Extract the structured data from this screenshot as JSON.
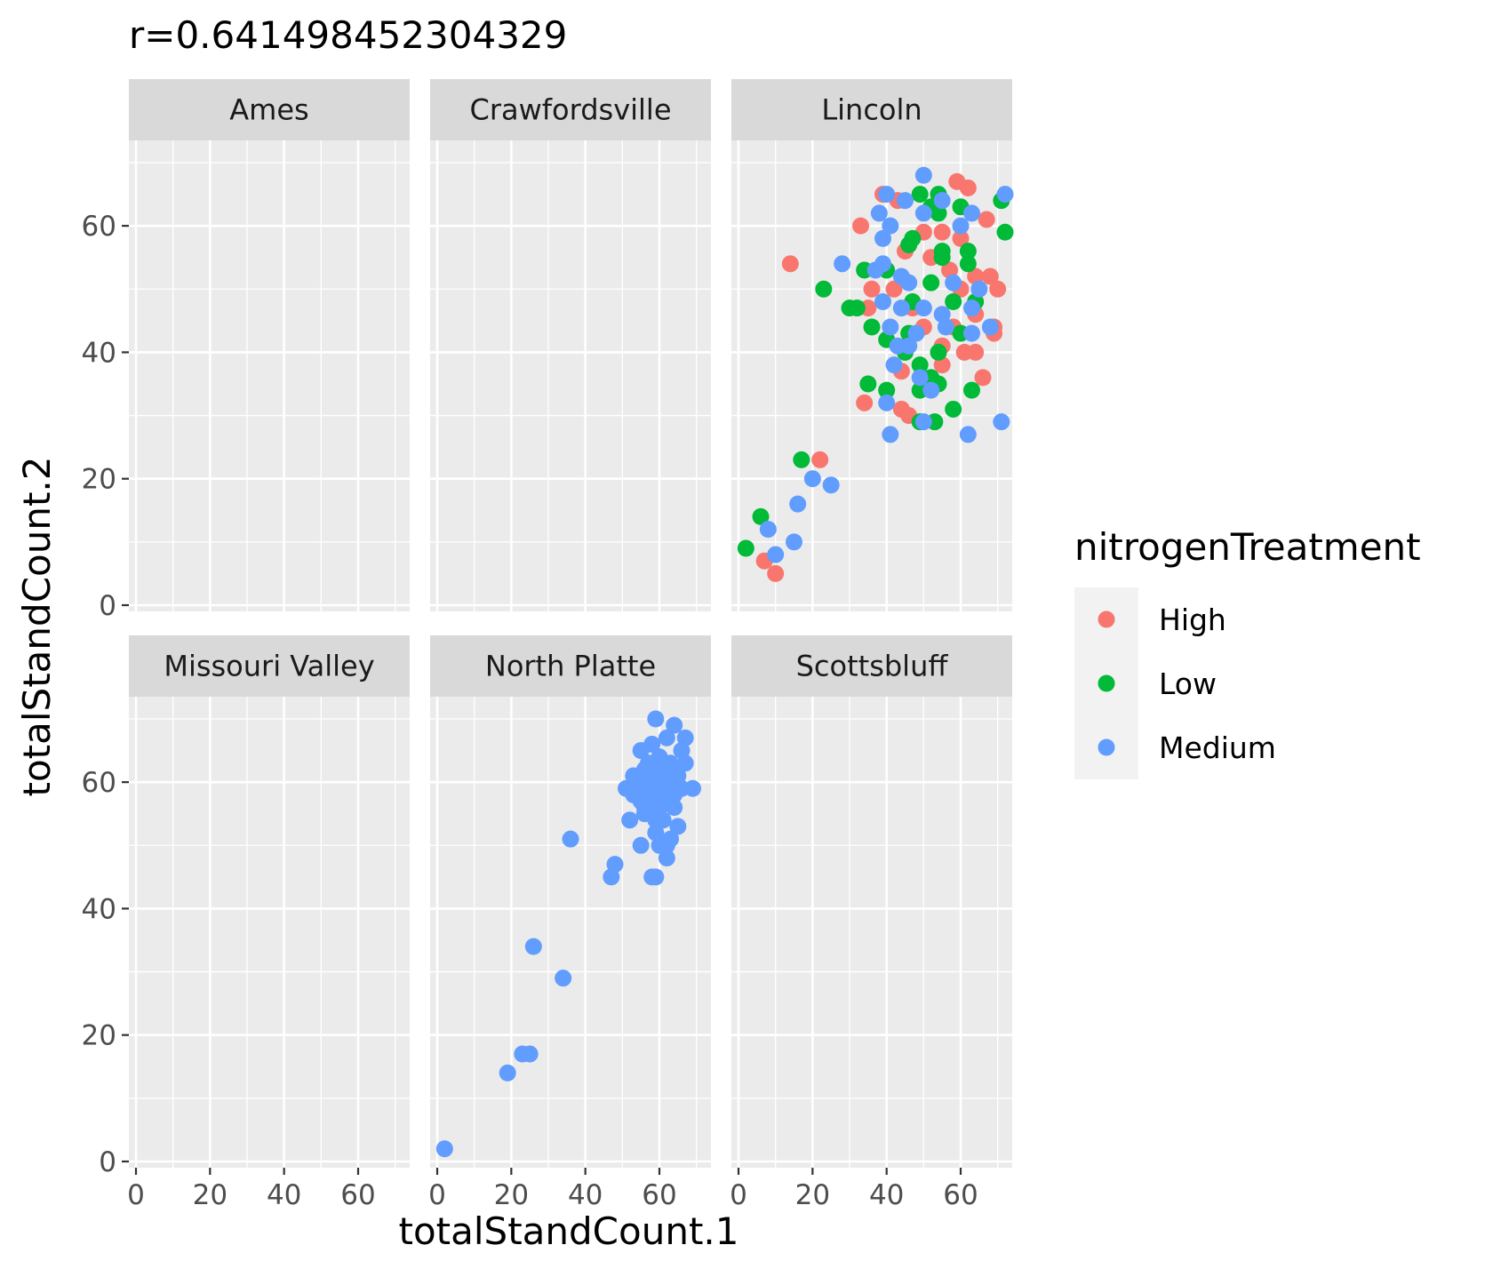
{
  "chart_data": {
    "type": "scatter",
    "title": "r=0.641498452304329",
    "xlabel": "totalStandCount.1",
    "ylabel": "totalStandCount.2",
    "xlim": [
      0,
      72
    ],
    "ylim": [
      0,
      70
    ],
    "x_ticks": [
      0,
      20,
      40,
      60
    ],
    "y_ticks": [
      0,
      20,
      40,
      60
    ],
    "x_tick_labels": [
      "0",
      "20",
      "40",
      "60"
    ],
    "y_tick_labels": [
      "0",
      "20",
      "40",
      "60"
    ],
    "grid": true,
    "facet_by": "location",
    "panels": [
      "Ames",
      "Crawfordsville",
      "Lincoln",
      "Missouri Valley",
      "North Platte",
      "Scottsbluff"
    ],
    "legend": {
      "title": "nitrogenTreatment",
      "position": "right",
      "entries": [
        {
          "label": "High",
          "color": "#F8766D"
        },
        {
          "label": "Low",
          "color": "#00BA38"
        },
        {
          "label": "Medium",
          "color": "#619CFF"
        }
      ]
    },
    "series": [
      {
        "name": "High",
        "color": "#F8766D",
        "points": [
          {
            "panel": "Lincoln",
            "x": 14,
            "y": 54
          },
          {
            "panel": "Lincoln",
            "x": 22,
            "y": 23
          },
          {
            "panel": "Lincoln",
            "x": 7,
            "y": 7
          },
          {
            "panel": "Lincoln",
            "x": 10,
            "y": 5
          },
          {
            "panel": "Lincoln",
            "x": 33,
            "y": 60
          },
          {
            "panel": "Lincoln",
            "x": 39,
            "y": 65
          },
          {
            "panel": "Lincoln",
            "x": 43,
            "y": 64
          },
          {
            "panel": "Lincoln",
            "x": 59,
            "y": 67
          },
          {
            "panel": "Lincoln",
            "x": 62,
            "y": 66
          },
          {
            "panel": "Lincoln",
            "x": 67,
            "y": 61
          },
          {
            "panel": "Lincoln",
            "x": 50,
            "y": 59
          },
          {
            "panel": "Lincoln",
            "x": 55,
            "y": 59
          },
          {
            "panel": "Lincoln",
            "x": 60,
            "y": 58
          },
          {
            "panel": "Lincoln",
            "x": 45,
            "y": 56
          },
          {
            "panel": "Lincoln",
            "x": 52,
            "y": 55
          },
          {
            "panel": "Lincoln",
            "x": 57,
            "y": 53
          },
          {
            "panel": "Lincoln",
            "x": 64,
            "y": 52
          },
          {
            "panel": "Lincoln",
            "x": 68,
            "y": 52
          },
          {
            "panel": "Lincoln",
            "x": 36,
            "y": 50
          },
          {
            "panel": "Lincoln",
            "x": 42,
            "y": 50
          },
          {
            "panel": "Lincoln",
            "x": 60,
            "y": 50
          },
          {
            "panel": "Lincoln",
            "x": 70,
            "y": 50
          },
          {
            "panel": "Lincoln",
            "x": 35,
            "y": 47
          },
          {
            "panel": "Lincoln",
            "x": 47,
            "y": 47
          },
          {
            "panel": "Lincoln",
            "x": 64,
            "y": 46
          },
          {
            "panel": "Lincoln",
            "x": 50,
            "y": 44
          },
          {
            "panel": "Lincoln",
            "x": 58,
            "y": 44
          },
          {
            "panel": "Lincoln",
            "x": 69,
            "y": 44
          },
          {
            "panel": "Lincoln",
            "x": 69,
            "y": 43
          },
          {
            "panel": "Lincoln",
            "x": 55,
            "y": 41
          },
          {
            "panel": "Lincoln",
            "x": 61,
            "y": 40
          },
          {
            "panel": "Lincoln",
            "x": 64,
            "y": 40
          },
          {
            "panel": "Lincoln",
            "x": 55,
            "y": 38
          },
          {
            "panel": "Lincoln",
            "x": 44,
            "y": 37
          },
          {
            "panel": "Lincoln",
            "x": 66,
            "y": 36
          },
          {
            "panel": "Lincoln",
            "x": 34,
            "y": 32
          },
          {
            "panel": "Lincoln",
            "x": 44,
            "y": 31
          },
          {
            "panel": "Lincoln",
            "x": 46,
            "y": 30
          }
        ]
      },
      {
        "name": "Low",
        "color": "#00BA38",
        "points": [
          {
            "panel": "Lincoln",
            "x": 2,
            "y": 9
          },
          {
            "panel": "Lincoln",
            "x": 6,
            "y": 14
          },
          {
            "panel": "Lincoln",
            "x": 17,
            "y": 23
          },
          {
            "panel": "Lincoln",
            "x": 23,
            "y": 50
          },
          {
            "panel": "Lincoln",
            "x": 30,
            "y": 47
          },
          {
            "panel": "Lincoln",
            "x": 32,
            "y": 47
          },
          {
            "panel": "Lincoln",
            "x": 34,
            "y": 53
          },
          {
            "panel": "Lincoln",
            "x": 36,
            "y": 44
          },
          {
            "panel": "Lincoln",
            "x": 35,
            "y": 35
          },
          {
            "panel": "Lincoln",
            "x": 40,
            "y": 34
          },
          {
            "panel": "Lincoln",
            "x": 40,
            "y": 42
          },
          {
            "panel": "Lincoln",
            "x": 40,
            "y": 53
          },
          {
            "panel": "Lincoln",
            "x": 46,
            "y": 57
          },
          {
            "panel": "Lincoln",
            "x": 47,
            "y": 58
          },
          {
            "panel": "Lincoln",
            "x": 49,
            "y": 65
          },
          {
            "panel": "Lincoln",
            "x": 52,
            "y": 63
          },
          {
            "panel": "Lincoln",
            "x": 54,
            "y": 65
          },
          {
            "panel": "Lincoln",
            "x": 60,
            "y": 63
          },
          {
            "panel": "Lincoln",
            "x": 54,
            "y": 62
          },
          {
            "panel": "Lincoln",
            "x": 71,
            "y": 64
          },
          {
            "panel": "Lincoln",
            "x": 72,
            "y": 59
          },
          {
            "panel": "Lincoln",
            "x": 55,
            "y": 56
          },
          {
            "panel": "Lincoln",
            "x": 62,
            "y": 56
          },
          {
            "panel": "Lincoln",
            "x": 55,
            "y": 55
          },
          {
            "panel": "Lincoln",
            "x": 62,
            "y": 54
          },
          {
            "panel": "Lincoln",
            "x": 52,
            "y": 51
          },
          {
            "panel": "Lincoln",
            "x": 47,
            "y": 48
          },
          {
            "panel": "Lincoln",
            "x": 58,
            "y": 48
          },
          {
            "panel": "Lincoln",
            "x": 64,
            "y": 48
          },
          {
            "panel": "Lincoln",
            "x": 46,
            "y": 43
          },
          {
            "panel": "Lincoln",
            "x": 60,
            "y": 43
          },
          {
            "panel": "Lincoln",
            "x": 45,
            "y": 40
          },
          {
            "panel": "Lincoln",
            "x": 54,
            "y": 40
          },
          {
            "panel": "Lincoln",
            "x": 49,
            "y": 38
          },
          {
            "panel": "Lincoln",
            "x": 52,
            "y": 36
          },
          {
            "panel": "Lincoln",
            "x": 54,
            "y": 35
          },
          {
            "panel": "Lincoln",
            "x": 49,
            "y": 34
          },
          {
            "panel": "Lincoln",
            "x": 63,
            "y": 34
          },
          {
            "panel": "Lincoln",
            "x": 58,
            "y": 31
          },
          {
            "panel": "Lincoln",
            "x": 49,
            "y": 29
          },
          {
            "panel": "Lincoln",
            "x": 53,
            "y": 29
          }
        ]
      },
      {
        "name": "Medium",
        "color": "#619CFF",
        "points": [
          {
            "panel": "Lincoln",
            "x": 8,
            "y": 12
          },
          {
            "panel": "Lincoln",
            "x": 10,
            "y": 8
          },
          {
            "panel": "Lincoln",
            "x": 15,
            "y": 10
          },
          {
            "panel": "Lincoln",
            "x": 16,
            "y": 16
          },
          {
            "panel": "Lincoln",
            "x": 20,
            "y": 20
          },
          {
            "panel": "Lincoln",
            "x": 25,
            "y": 19
          },
          {
            "panel": "Lincoln",
            "x": 28,
            "y": 54
          },
          {
            "panel": "Lincoln",
            "x": 38,
            "y": 62
          },
          {
            "panel": "Lincoln",
            "x": 39,
            "y": 58
          },
          {
            "panel": "Lincoln",
            "x": 40,
            "y": 65
          },
          {
            "panel": "Lincoln",
            "x": 41,
            "y": 60
          },
          {
            "panel": "Lincoln",
            "x": 45,
            "y": 64
          },
          {
            "panel": "Lincoln",
            "x": 50,
            "y": 68
          },
          {
            "panel": "Lincoln",
            "x": 50,
            "y": 62
          },
          {
            "panel": "Lincoln",
            "x": 55,
            "y": 64
          },
          {
            "panel": "Lincoln",
            "x": 60,
            "y": 60
          },
          {
            "panel": "Lincoln",
            "x": 63,
            "y": 62
          },
          {
            "panel": "Lincoln",
            "x": 72,
            "y": 65
          },
          {
            "panel": "Lincoln",
            "x": 65,
            "y": 50
          },
          {
            "panel": "Lincoln",
            "x": 63,
            "y": 47
          },
          {
            "panel": "Lincoln",
            "x": 68,
            "y": 44
          },
          {
            "panel": "Lincoln",
            "x": 37,
            "y": 53
          },
          {
            "panel": "Lincoln",
            "x": 39,
            "y": 54
          },
          {
            "panel": "Lincoln",
            "x": 44,
            "y": 52
          },
          {
            "panel": "Lincoln",
            "x": 46,
            "y": 51
          },
          {
            "panel": "Lincoln",
            "x": 39,
            "y": 48
          },
          {
            "panel": "Lincoln",
            "x": 44,
            "y": 47
          },
          {
            "panel": "Lincoln",
            "x": 50,
            "y": 47
          },
          {
            "panel": "Lincoln",
            "x": 55,
            "y": 46
          },
          {
            "panel": "Lincoln",
            "x": 58,
            "y": 51
          },
          {
            "panel": "Lincoln",
            "x": 41,
            "y": 44
          },
          {
            "panel": "Lincoln",
            "x": 48,
            "y": 43
          },
          {
            "panel": "Lincoln",
            "x": 56,
            "y": 44
          },
          {
            "panel": "Lincoln",
            "x": 63,
            "y": 43
          },
          {
            "panel": "Lincoln",
            "x": 43,
            "y": 41
          },
          {
            "panel": "Lincoln",
            "x": 46,
            "y": 41
          },
          {
            "panel": "Lincoln",
            "x": 42,
            "y": 38
          },
          {
            "panel": "Lincoln",
            "x": 49,
            "y": 36
          },
          {
            "panel": "Lincoln",
            "x": 52,
            "y": 34
          },
          {
            "panel": "Lincoln",
            "x": 40,
            "y": 32
          },
          {
            "panel": "Lincoln",
            "x": 41,
            "y": 27
          },
          {
            "panel": "Lincoln",
            "x": 50,
            "y": 29
          },
          {
            "panel": "Lincoln",
            "x": 62,
            "y": 27
          },
          {
            "panel": "Lincoln",
            "x": 71,
            "y": 29
          },
          {
            "panel": "North Platte",
            "x": 2,
            "y": 2
          },
          {
            "panel": "North Platte",
            "x": 19,
            "y": 14
          },
          {
            "panel": "North Platte",
            "x": 23,
            "y": 17
          },
          {
            "panel": "North Platte",
            "x": 25,
            "y": 17
          },
          {
            "panel": "North Platte",
            "x": 26,
            "y": 34
          },
          {
            "panel": "North Platte",
            "x": 34,
            "y": 29
          },
          {
            "panel": "North Platte",
            "x": 36,
            "y": 51
          },
          {
            "panel": "North Platte",
            "x": 47,
            "y": 45
          },
          {
            "panel": "North Platte",
            "x": 48,
            "y": 47
          },
          {
            "panel": "North Platte",
            "x": 58,
            "y": 45
          },
          {
            "panel": "North Platte",
            "x": 59,
            "y": 45
          },
          {
            "panel": "North Platte",
            "x": 55,
            "y": 50
          },
          {
            "panel": "North Platte",
            "x": 60,
            "y": 50
          },
          {
            "panel": "North Platte",
            "x": 62,
            "y": 48
          },
          {
            "panel": "North Platte",
            "x": 62,
            "y": 50
          },
          {
            "panel": "North Platte",
            "x": 52,
            "y": 54
          },
          {
            "panel": "North Platte",
            "x": 56,
            "y": 55
          },
          {
            "panel": "North Platte",
            "x": 59,
            "y": 54
          },
          {
            "panel": "North Platte",
            "x": 65,
            "y": 53
          },
          {
            "panel": "North Platte",
            "x": 59,
            "y": 70
          },
          {
            "panel": "North Platte",
            "x": 64,
            "y": 69
          },
          {
            "panel": "North Platte",
            "x": 62,
            "y": 67
          },
          {
            "panel": "North Platte",
            "x": 67,
            "y": 67
          },
          {
            "panel": "North Platte",
            "x": 58,
            "y": 66
          },
          {
            "panel": "North Platte",
            "x": 55,
            "y": 65
          },
          {
            "panel": "North Platte",
            "x": 60,
            "y": 64
          },
          {
            "panel": "North Platte",
            "x": 66,
            "y": 65
          },
          {
            "panel": "North Platte",
            "x": 57,
            "y": 63
          },
          {
            "panel": "North Platte",
            "x": 63,
            "y": 63
          },
          {
            "panel": "North Platte",
            "x": 67,
            "y": 63
          },
          {
            "panel": "North Platte",
            "x": 56,
            "y": 62
          },
          {
            "panel": "North Platte",
            "x": 61,
            "y": 62
          },
          {
            "panel": "North Platte",
            "x": 53,
            "y": 61
          },
          {
            "panel": "North Platte",
            "x": 58,
            "y": 61
          },
          {
            "panel": "North Platte",
            "x": 65,
            "y": 61
          },
          {
            "panel": "North Platte",
            "x": 55,
            "y": 60
          },
          {
            "panel": "North Platte",
            "x": 60,
            "y": 60
          },
          {
            "panel": "North Platte",
            "x": 63,
            "y": 60
          },
          {
            "panel": "North Platte",
            "x": 51,
            "y": 59
          },
          {
            "panel": "North Platte",
            "x": 54,
            "y": 59
          },
          {
            "panel": "North Platte",
            "x": 57,
            "y": 59
          },
          {
            "panel": "North Platte",
            "x": 62,
            "y": 59
          },
          {
            "panel": "North Platte",
            "x": 66,
            "y": 59
          },
          {
            "panel": "North Platte",
            "x": 69,
            "y": 59
          },
          {
            "panel": "North Platte",
            "x": 53,
            "y": 58
          },
          {
            "panel": "North Platte",
            "x": 59,
            "y": 58
          },
          {
            "panel": "North Platte",
            "x": 64,
            "y": 58
          },
          {
            "panel": "North Platte",
            "x": 55,
            "y": 57
          },
          {
            "panel": "North Platte",
            "x": 58,
            "y": 57
          },
          {
            "panel": "North Platte",
            "x": 61,
            "y": 57
          },
          {
            "panel": "North Platte",
            "x": 56,
            "y": 56
          },
          {
            "panel": "North Platte",
            "x": 60,
            "y": 56
          },
          {
            "panel": "North Platte",
            "x": 64,
            "y": 56
          },
          {
            "panel": "North Platte",
            "x": 58,
            "y": 55
          },
          {
            "panel": "North Platte",
            "x": 61,
            "y": 54
          },
          {
            "panel": "North Platte",
            "x": 59,
            "y": 52
          },
          {
            "panel": "North Platte",
            "x": 63,
            "y": 51
          }
        ]
      }
    ]
  }
}
